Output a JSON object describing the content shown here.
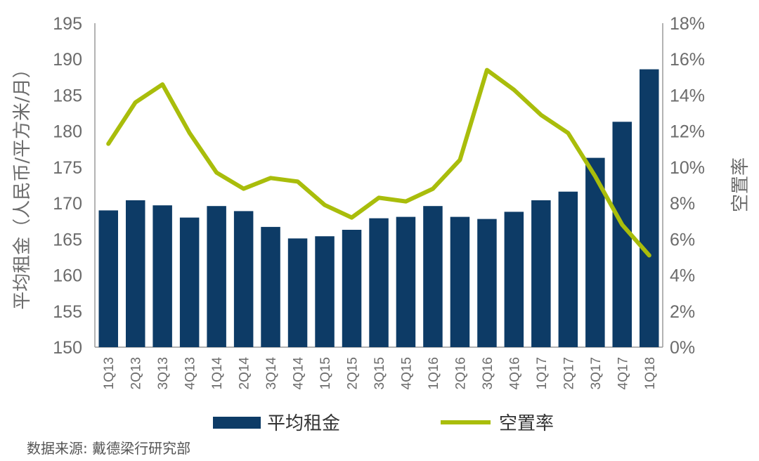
{
  "chart_data": {
    "type": "bar",
    "categories": [
      "1Q13",
      "2Q13",
      "3Q13",
      "4Q13",
      "1Q14",
      "2Q14",
      "3Q14",
      "4Q14",
      "1Q15",
      "2Q15",
      "3Q15",
      "4Q15",
      "1Q16",
      "2Q16",
      "3Q16",
      "4Q16",
      "1Q17",
      "2Q17",
      "3Q17",
      "4Q17",
      "1Q18"
    ],
    "series": [
      {
        "name": "平均租金",
        "type": "bar",
        "axis": "left",
        "color": "#0d3b66",
        "values": [
          169.0,
          170.4,
          169.7,
          168.0,
          169.6,
          168.9,
          166.7,
          165.1,
          165.4,
          166.3,
          167.9,
          168.1,
          169.6,
          168.1,
          167.8,
          168.8,
          170.4,
          171.6,
          176.3,
          181.3,
          188.6
        ]
      },
      {
        "name": "空置率",
        "type": "line",
        "axis": "right",
        "color": "#a9bd0b",
        "values": [
          11.3,
          13.6,
          14.6,
          11.9,
          9.7,
          8.8,
          9.4,
          9.2,
          7.9,
          7.2,
          8.3,
          8.1,
          8.8,
          10.4,
          15.4,
          14.3,
          12.9,
          11.9,
          9.5,
          6.8,
          5.1
        ]
      }
    ],
    "ylabel": "平均租金（人民币/平方米/月）",
    "y2label": "空置率",
    "ylim": [
      150,
      195
    ],
    "yticks": [
      "195",
      "190",
      "185",
      "180",
      "175",
      "170",
      "165",
      "160",
      "155",
      "150"
    ],
    "y2lim": [
      0,
      18
    ],
    "y2ticks": [
      "18%",
      "16%",
      "14%",
      "12%",
      "10%",
      "8%",
      "6%",
      "4%",
      "2%",
      "0%"
    ],
    "grid": false,
    "legend": "bottom"
  },
  "source": "数据来源: 戴德梁行研究部"
}
